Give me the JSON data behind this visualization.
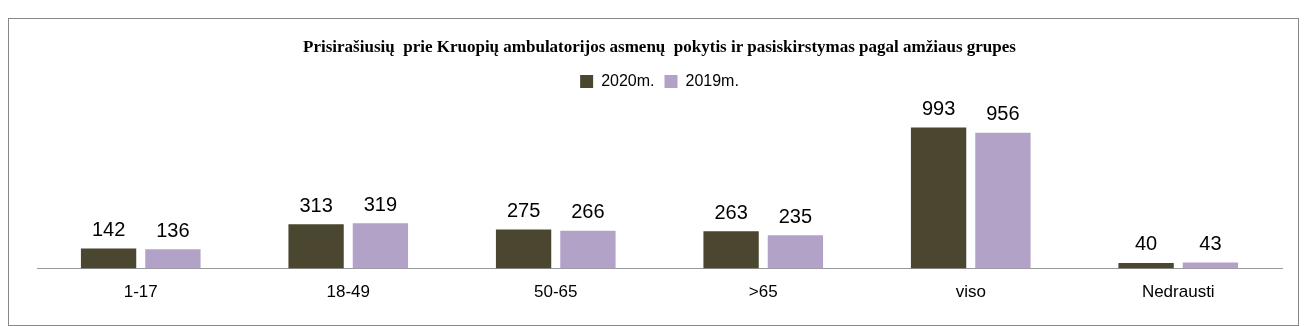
{
  "chart_data": {
    "type": "bar",
    "title": "Prisirašiusių  prie Kruopių ambulatorijos asmenų  pokytis ir pasiskirstymas pagal amžiaus grupes",
    "categories": [
      "1-17",
      "18-49",
      "50-65",
      ">65",
      "viso",
      "Nedrausti"
    ],
    "series": [
      {
        "name": "2020m.",
        "color": "#4b4630",
        "values": [
          142,
          313,
          275,
          263,
          993,
          40
        ]
      },
      {
        "name": "2019m.",
        "color": "#b3a2c7",
        "values": [
          136,
          319,
          266,
          235,
          956,
          43
        ]
      }
    ],
    "data_labels": true,
    "legend": "top",
    "grid": false,
    "tick_labels": "x"
  }
}
